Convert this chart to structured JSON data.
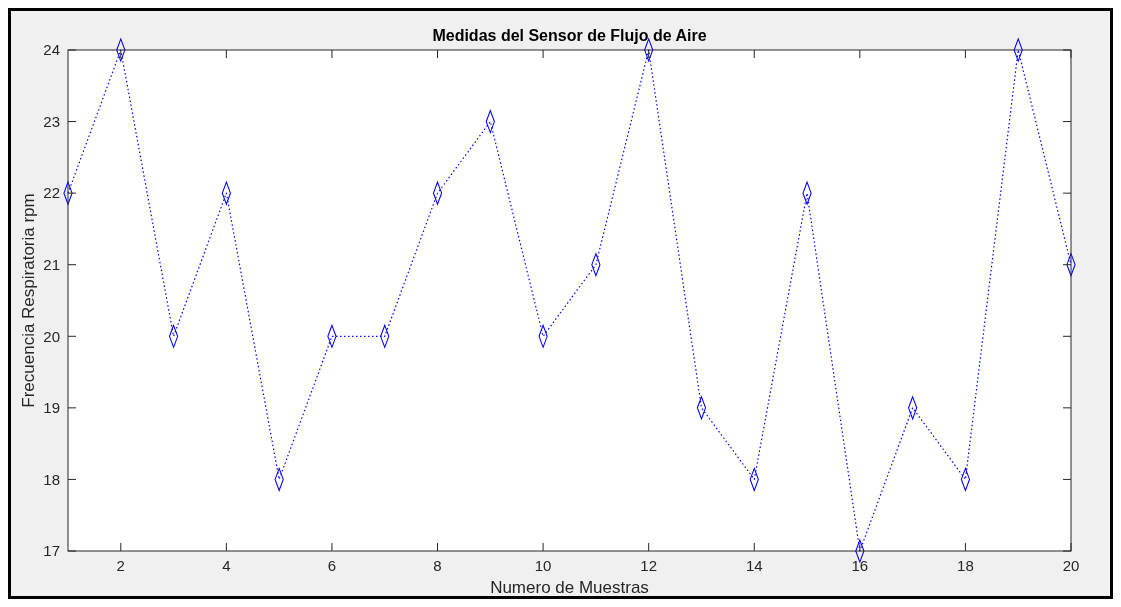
{
  "chart_data": {
    "type": "line",
    "title": "Medidas del Sensor de Flujo de Aire",
    "xlabel": "Numero de Muestras",
    "ylabel": "Frecuencia Respiratoria rpm",
    "x": [
      1,
      2,
      3,
      4,
      5,
      6,
      7,
      8,
      9,
      10,
      11,
      12,
      13,
      14,
      15,
      16,
      17,
      18,
      19,
      20
    ],
    "series": [
      {
        "color": "#0000ff",
        "values": [
          22,
          24,
          20,
          22,
          18,
          20,
          20,
          22,
          23,
          20,
          21,
          24,
          19,
          18,
          22,
          17,
          19,
          18,
          24,
          21
        ]
      }
    ],
    "xlim": [
      1,
      20
    ],
    "xticks": [
      2,
      4,
      6,
      8,
      10,
      12,
      14,
      16,
      18,
      20
    ],
    "ylim": [
      17,
      24
    ],
    "yticks": [
      17,
      18,
      19,
      20,
      21,
      22,
      23,
      24
    ],
    "marker": "diamond",
    "line_style": "dotted",
    "grid": false
  }
}
